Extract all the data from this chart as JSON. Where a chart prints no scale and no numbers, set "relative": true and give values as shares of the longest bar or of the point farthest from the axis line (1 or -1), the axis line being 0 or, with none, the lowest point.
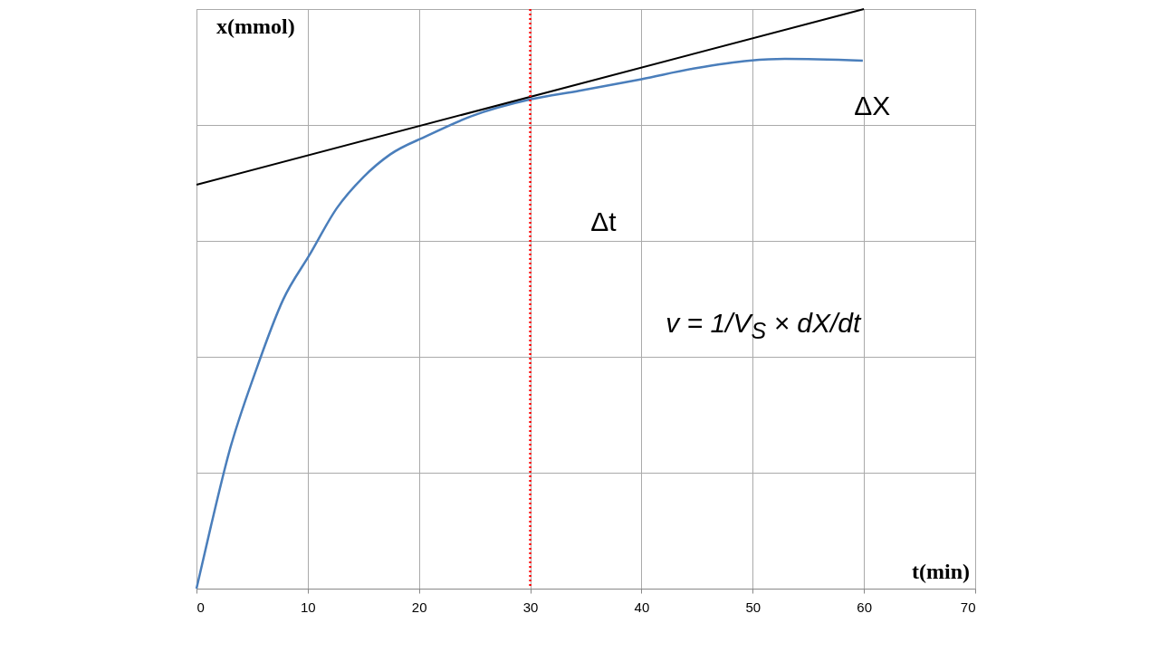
{
  "chart_data": {
    "type": "line",
    "relative": true,
    "xlabel": "t(min)",
    "ylabel": "x(mmol)",
    "xlim": [
      0,
      70
    ],
    "xticks": [
      0,
      10,
      20,
      30,
      40,
      50,
      60,
      70
    ],
    "grid": true,
    "marker": "none",
    "series": [
      {
        "color": "#4a7ebb",
        "x": [
          0,
          1.3,
          2.9,
          5.3,
          7.8,
          10.2,
          12.6,
          15,
          17.4,
          20.7,
          24.7,
          30,
          34.4,
          40,
          44.9,
          49.7,
          52.9,
          59.9
        ],
        "values": [
          0,
          0.108,
          0.233,
          0.374,
          0.499,
          0.577,
          0.656,
          0.71,
          0.749,
          0.781,
          0.815,
          0.844,
          0.859,
          0.879,
          0.898,
          0.911,
          0.914,
          0.911
        ]
      },
      {
        "type": "line",
        "color": "#000000",
        "x": [
          0,
          60
        ],
        "values": [
          0.697,
          1
        ]
      }
    ],
    "ref_lines": [
      {
        "axis": "x",
        "value": 30,
        "color": "#ff0000",
        "line_style": "dotted"
      }
    ],
    "annotations": [
      "ΔX",
      "Δt",
      "v = 1/V$_{S}$ × dX/dt"
    ]
  }
}
